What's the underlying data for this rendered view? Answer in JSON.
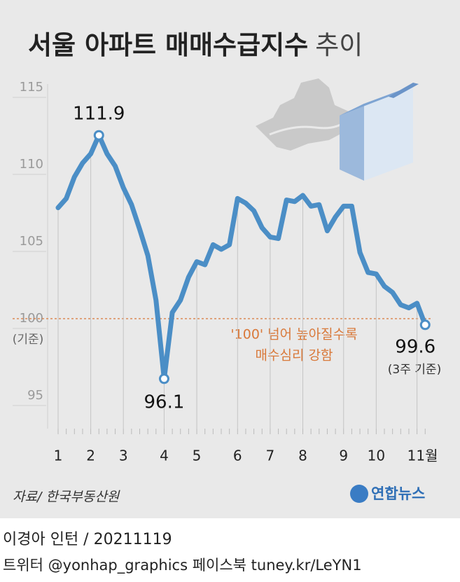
{
  "chart_data": {
    "type": "line",
    "title_parts": [
      "서울 아파트 매매수급지수",
      "추이"
    ],
    "categories": [
      "1",
      null,
      null,
      null,
      "2",
      null,
      null,
      null,
      "3",
      null,
      null,
      null,
      null,
      "4",
      null,
      null,
      null,
      "5",
      null,
      null,
      null,
      null,
      "6",
      null,
      null,
      null,
      "7",
      null,
      null,
      null,
      "8",
      null,
      null,
      null,
      null,
      "9",
      null,
      null,
      null,
      "10",
      null,
      null,
      null,
      null,
      "11월",
      null
    ],
    "series": [
      {
        "name": "매매수급지수",
        "color": "#4b8ec6",
        "values": [
          107.2,
          107.8,
          109.2,
          110.1,
          110.7,
          111.9,
          110.7,
          109.9,
          108.5,
          107.4,
          105.8,
          104.1,
          101.2,
          96.1,
          100.4,
          101.2,
          102.7,
          103.7,
          103.5,
          104.8,
          104.5,
          104.8,
          107.8,
          107.5,
          107.0,
          105.9,
          105.3,
          105.2,
          107.7,
          107.6,
          108.0,
          107.3,
          107.4,
          105.7,
          106.6,
          107.3,
          107.3,
          104.3,
          103.0,
          102.9,
          102.1,
          101.7,
          100.9,
          100.7,
          101.0,
          99.6
        ]
      }
    ],
    "labeled_points": [
      5,
      13,
      45
    ],
    "ylim": [
      93,
      115.5
    ],
    "yticks": [
      95,
      100,
      105,
      110,
      115
    ],
    "reference_line": {
      "value": 100,
      "label": "(기준)",
      "color": "#d9793a"
    },
    "end_note": "(3주 기준)",
    "annotation": [
      "'100' 넘어 높아질수록",
      "매수심리 강함"
    ],
    "source": "자료/ 한국부동산원",
    "logo": "연합뉴스"
  },
  "footer": {
    "byline": "이경아 인턴 / 20211119",
    "social": "트위터 @yonhap_graphics  페이스북 tuney.kr/LeYN1"
  }
}
